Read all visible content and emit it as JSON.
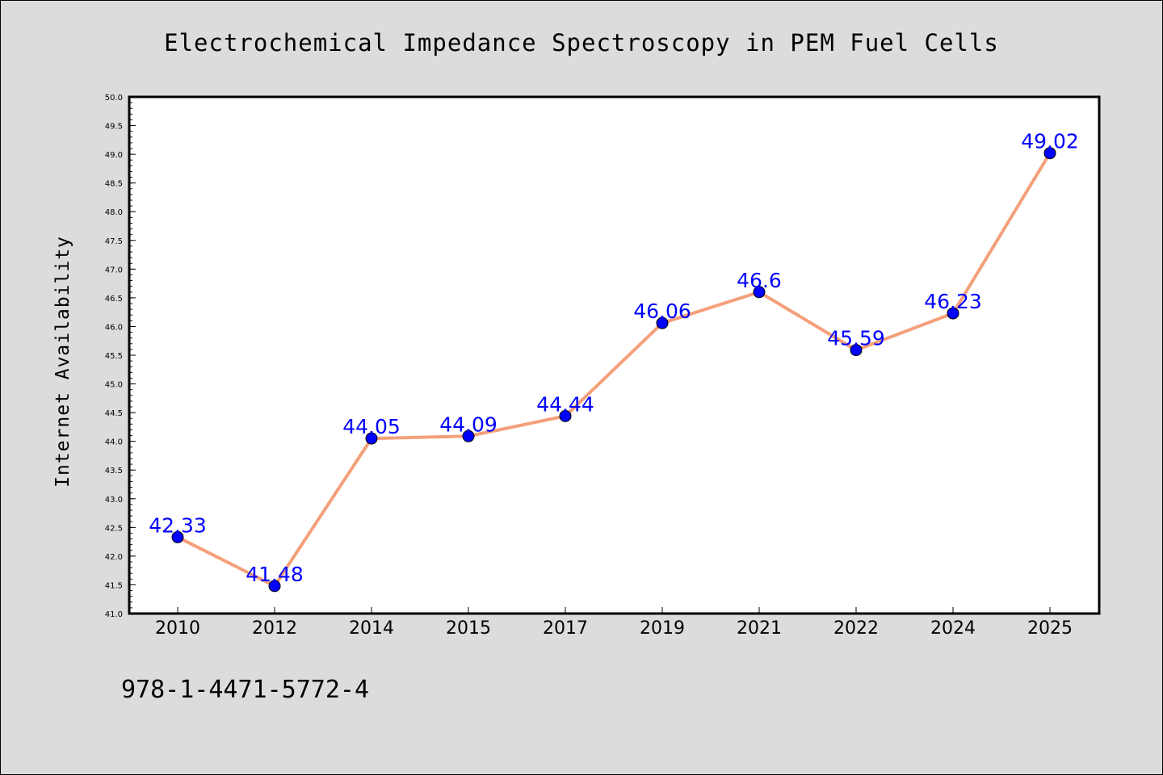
{
  "chart_data": {
    "type": "line",
    "title": "Electrochemical Impedance Spectroscopy in PEM Fuel Cells",
    "xlabel": "",
    "ylabel": "Internet Availability",
    "categories": [
      "2010",
      "2012",
      "2014",
      "2015",
      "2017",
      "2019",
      "2021",
      "2022",
      "2024",
      "2025"
    ],
    "series": [
      {
        "values": [
          42.33,
          41.48,
          44.05,
          44.09,
          44.44,
          46.06,
          46.6,
          45.59,
          46.23,
          49.02
        ],
        "data_labels": [
          "42.33",
          "41.48",
          "44.05",
          "44.09",
          "44.44",
          "46.06",
          "46.6",
          "45.59",
          "46.23",
          "49.02"
        ],
        "line_color": "#f4a07a",
        "marker_color": "#0000ff"
      }
    ],
    "ylim": [
      41.0,
      50.0
    ],
    "yticks": [
      "41.0",
      "41.5",
      "42.0",
      "42.5",
      "43.0",
      "43.5",
      "44.0",
      "44.5",
      "45.0",
      "45.5",
      "46.0",
      "46.5",
      "47.0",
      "47.5",
      "48.0",
      "48.5",
      "49.0",
      "49.5",
      "50.0"
    ],
    "grid": false,
    "legend": "none"
  },
  "footer": {
    "code": "978-1-4471-5772-4"
  }
}
